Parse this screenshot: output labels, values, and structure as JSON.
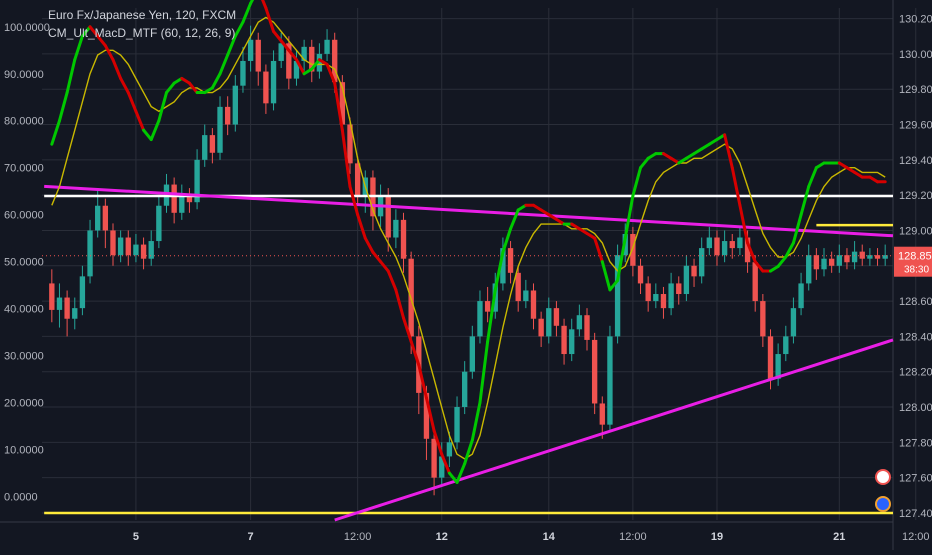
{
  "header": {
    "symbol_line": "Euro Fx/Japanese Yen, 120, FXCM",
    "indicator_line": "CM_Ult_MacD_MTF (60, 12, 26, 9)"
  },
  "colors": {
    "background": "#131722",
    "grid": "#2a2e39",
    "up_candle": "#26a69a",
    "down_candle": "#ef5350",
    "macd_up": "#00c800",
    "macd_down": "#d50000",
    "signal": "#c9b800",
    "trendline": "#e91ee6",
    "white_level": "#ffffff",
    "yellow_level": "#ffeb3b",
    "price_badge": "#ef5350"
  },
  "chart_data": {
    "type": "line",
    "left_axis": {
      "ticks": [
        "100.0000",
        "90.0000",
        "80.0000",
        "70.0000",
        "60.0000",
        "50.0000",
        "40.0000",
        "30.0000",
        "20.0000",
        "10.0000",
        "0.0000"
      ],
      "range": [
        -5,
        104
      ]
    },
    "right_axis": {
      "ticks": [
        "130.200",
        "130.000",
        "129.800",
        "129.600",
        "129.400",
        "129.200",
        "129.000",
        "128.800",
        "128.600",
        "128.400",
        "128.200",
        "128.000",
        "127.800",
        "127.600",
        "127.400"
      ],
      "range": [
        127.36,
        130.26
      ]
    },
    "x_axis": {
      "ticks": [
        {
          "label": "5",
          "bold": true,
          "i": 11
        },
        {
          "label": "7",
          "bold": true,
          "i": 26
        },
        {
          "label": "12:00",
          "bold": false,
          "i": 40
        },
        {
          "label": "12",
          "bold": true,
          "i": 51
        },
        {
          "label": "14",
          "bold": true,
          "i": 65
        },
        {
          "label": "12:00",
          "bold": false,
          "i": 76
        },
        {
          "label": "19",
          "bold": true,
          "i": 87
        },
        {
          "label": "21",
          "bold": true,
          "i": 103
        },
        {
          "label": "12:00",
          "bold": false,
          "i": 113
        }
      ]
    },
    "current_price": "128.857",
    "countdown": "38:30",
    "price_candles": [
      [
        128.7,
        128.55,
        128.78,
        128.48
      ],
      [
        128.55,
        128.62,
        128.7,
        128.45
      ],
      [
        128.62,
        128.5,
        128.66,
        128.4
      ],
      [
        128.5,
        128.56,
        128.62,
        128.44
      ],
      [
        128.56,
        128.74,
        128.8,
        128.52
      ],
      [
        128.74,
        129.0,
        129.06,
        128.7
      ],
      [
        129.0,
        129.14,
        129.24,
        128.96
      ],
      [
        129.14,
        129.0,
        129.18,
        128.9
      ],
      [
        129.0,
        128.86,
        129.04,
        128.8
      ],
      [
        128.86,
        128.96,
        129.0,
        128.82
      ],
      [
        128.96,
        128.86,
        129.0,
        128.8
      ],
      [
        128.86,
        128.92,
        128.98,
        128.82
      ],
      [
        128.92,
        128.84,
        128.96,
        128.78
      ],
      [
        128.84,
        128.94,
        129.0,
        128.8
      ],
      [
        128.94,
        129.14,
        129.2,
        128.9
      ],
      [
        129.14,
        129.26,
        129.32,
        129.1
      ],
      [
        129.26,
        129.1,
        129.3,
        129.04
      ],
      [
        129.1,
        129.2,
        129.26,
        129.06
      ],
      [
        129.2,
        129.16,
        129.24,
        129.1
      ],
      [
        129.16,
        129.4,
        129.46,
        129.12
      ],
      [
        129.4,
        129.54,
        129.6,
        129.36
      ],
      [
        129.54,
        129.44,
        129.58,
        129.38
      ],
      [
        129.44,
        129.7,
        129.76,
        129.4
      ],
      [
        129.7,
        129.6,
        129.76,
        129.54
      ],
      [
        129.6,
        129.82,
        129.88,
        129.56
      ],
      [
        129.82,
        129.96,
        130.04,
        129.78
      ],
      [
        129.96,
        130.08,
        130.16,
        129.9
      ],
      [
        130.08,
        129.9,
        130.12,
        129.82
      ],
      [
        129.9,
        129.72,
        129.94,
        129.66
      ],
      [
        129.72,
        129.96,
        130.02,
        129.68
      ],
      [
        129.96,
        130.06,
        130.12,
        129.92
      ],
      [
        130.06,
        129.86,
        130.1,
        129.8
      ],
      [
        129.86,
        129.96,
        130.02,
        129.82
      ],
      [
        129.96,
        130.04,
        130.08,
        129.9
      ],
      [
        130.04,
        129.9,
        130.08,
        129.84
      ],
      [
        129.9,
        130.0,
        130.06,
        129.86
      ],
      [
        130.0,
        130.08,
        130.14,
        129.96
      ],
      [
        130.08,
        129.84,
        130.12,
        129.78
      ],
      [
        129.84,
        129.6,
        129.88,
        129.54
      ],
      [
        129.6,
        129.38,
        129.64,
        129.32
      ],
      [
        129.38,
        129.2,
        129.42,
        129.14
      ],
      [
        129.2,
        129.3,
        129.34,
        129.1
      ],
      [
        129.3,
        129.08,
        129.34,
        129.0
      ],
      [
        129.08,
        129.2,
        129.26,
        129.02
      ],
      [
        129.2,
        128.96,
        129.24,
        128.88
      ],
      [
        128.96,
        129.06,
        129.12,
        128.9
      ],
      [
        129.06,
        128.84,
        129.1,
        128.76
      ],
      [
        128.84,
        128.4,
        128.88,
        128.3
      ],
      [
        128.4,
        128.08,
        128.46,
        127.96
      ],
      [
        128.08,
        127.82,
        128.12,
        127.7
      ],
      [
        127.82,
        127.6,
        127.86,
        127.5
      ],
      [
        127.6,
        127.72,
        127.8,
        127.56
      ],
      [
        127.72,
        127.8,
        127.86,
        127.66
      ],
      [
        127.8,
        128.0,
        128.06,
        127.76
      ],
      [
        128.0,
        128.2,
        128.26,
        127.96
      ],
      [
        128.2,
        128.4,
        128.46,
        128.16
      ],
      [
        128.4,
        128.6,
        128.66,
        128.36
      ],
      [
        128.6,
        128.54,
        128.68,
        128.48
      ],
      [
        128.54,
        128.7,
        128.76,
        128.5
      ],
      [
        128.7,
        128.9,
        128.96,
        128.66
      ],
      [
        128.9,
        128.76,
        128.94,
        128.7
      ],
      [
        128.76,
        128.6,
        128.8,
        128.54
      ],
      [
        128.6,
        128.66,
        128.72,
        128.56
      ],
      [
        128.66,
        128.5,
        128.7,
        128.44
      ],
      [
        128.5,
        128.4,
        128.54,
        128.34
      ],
      [
        128.4,
        128.56,
        128.62,
        128.36
      ],
      [
        128.56,
        128.46,
        128.6,
        128.4
      ],
      [
        128.46,
        128.3,
        128.5,
        128.24
      ],
      [
        128.3,
        128.44,
        128.5,
        128.26
      ],
      [
        128.44,
        128.52,
        128.58,
        128.4
      ],
      [
        128.52,
        128.38,
        128.56,
        128.32
      ],
      [
        128.38,
        128.02,
        128.42,
        127.96
      ],
      [
        128.02,
        127.9,
        128.06,
        127.82
      ],
      [
        127.9,
        128.4,
        128.46,
        127.86
      ],
      [
        128.4,
        128.86,
        128.92,
        128.36
      ],
      [
        128.86,
        128.98,
        129.04,
        128.82
      ],
      [
        128.98,
        128.8,
        129.02,
        128.74
      ],
      [
        128.8,
        128.7,
        128.84,
        128.64
      ],
      [
        128.7,
        128.6,
        128.74,
        128.54
      ],
      [
        128.6,
        128.64,
        128.7,
        128.56
      ],
      [
        128.64,
        128.56,
        128.68,
        128.5
      ],
      [
        128.56,
        128.7,
        128.76,
        128.52
      ],
      [
        128.7,
        128.64,
        128.74,
        128.58
      ],
      [
        128.64,
        128.8,
        128.86,
        128.6
      ],
      [
        128.8,
        128.74,
        128.84,
        128.68
      ],
      [
        128.74,
        128.9,
        128.96,
        128.7
      ],
      [
        128.9,
        128.96,
        129.02,
        128.86
      ],
      [
        128.96,
        128.86,
        129.0,
        128.8
      ],
      [
        128.86,
        128.94,
        129.0,
        128.82
      ],
      [
        128.94,
        128.9,
        128.98,
        128.84
      ],
      [
        128.9,
        128.96,
        129.02,
        128.86
      ],
      [
        128.96,
        128.82,
        129.0,
        128.76
      ],
      [
        128.82,
        128.6,
        128.86,
        128.54
      ],
      [
        128.6,
        128.4,
        128.64,
        128.34
      ],
      [
        128.4,
        128.16,
        128.44,
        128.1
      ],
      [
        128.16,
        128.3,
        128.36,
        128.12
      ],
      [
        128.3,
        128.4,
        128.46,
        128.26
      ],
      [
        128.4,
        128.56,
        128.62,
        128.36
      ],
      [
        128.56,
        128.7,
        128.76,
        128.52
      ],
      [
        128.7,
        128.86,
        128.92,
        128.66
      ],
      [
        128.86,
        128.78,
        128.9,
        128.72
      ],
      [
        128.78,
        128.84,
        128.9,
        128.74
      ],
      [
        128.84,
        128.8,
        128.88,
        128.76
      ],
      [
        128.8,
        128.86,
        128.92,
        128.76
      ],
      [
        128.86,
        128.82,
        128.9,
        128.78
      ],
      [
        128.82,
        128.88,
        128.94,
        128.78
      ],
      [
        128.88,
        128.84,
        128.92,
        128.8
      ],
      [
        128.84,
        128.86,
        128.9,
        128.8
      ],
      [
        128.86,
        128.84,
        128.9,
        128.8
      ],
      [
        128.84,
        128.86,
        128.92,
        128.8
      ]
    ],
    "macd_series": [
      75,
      80,
      86,
      93,
      98,
      100,
      98,
      96,
      93,
      89,
      86,
      82,
      78,
      76,
      80,
      86,
      88,
      89,
      88,
      86,
      86,
      87,
      90,
      94,
      98,
      101,
      105,
      108,
      104,
      99,
      97,
      95,
      93,
      90,
      91,
      93,
      92,
      88,
      78,
      66,
      60,
      55,
      52,
      50,
      48,
      44,
      38,
      33,
      28,
      21,
      14,
      9,
      5,
      3,
      7,
      12,
      20,
      33,
      44,
      52,
      57,
      61,
      62,
      62,
      61,
      60,
      59,
      58,
      58,
      57,
      56,
      55,
      50,
      44,
      46,
      55,
      64,
      70,
      72,
      73,
      73,
      72,
      71,
      72,
      73,
      74,
      75,
      76,
      77,
      70,
      62,
      54,
      50,
      48,
      48,
      49,
      51,
      54,
      60,
      66,
      70,
      71,
      71,
      71,
      70,
      69,
      68,
      68,
      67,
      67
    ],
    "macd_direction": [
      1,
      1,
      1,
      1,
      1,
      1,
      -1,
      -1,
      -1,
      -1,
      -1,
      -1,
      -1,
      1,
      1,
      1,
      1,
      1,
      -1,
      -1,
      1,
      1,
      1,
      1,
      1,
      1,
      1,
      1,
      -1,
      -1,
      -1,
      -1,
      -1,
      -1,
      1,
      1,
      -1,
      -1,
      -1,
      -1,
      -1,
      -1,
      -1,
      -1,
      -1,
      -1,
      -1,
      -1,
      -1,
      -1,
      -1,
      -1,
      -1,
      1,
      1,
      1,
      1,
      1,
      1,
      1,
      1,
      1,
      1,
      -1,
      -1,
      -1,
      -1,
      -1,
      1,
      -1,
      -1,
      -1,
      -1,
      1,
      1,
      1,
      1,
      1,
      1,
      1,
      1,
      -1,
      -1,
      1,
      1,
      1,
      1,
      1,
      1,
      -1,
      -1,
      -1,
      -1,
      -1,
      -1,
      1,
      1,
      1,
      1,
      1,
      1,
      1,
      1,
      1,
      -1,
      -1,
      -1,
      -1,
      -1,
      -1
    ],
    "signal_series": [
      62,
      66,
      72,
      78,
      84,
      90,
      94,
      95,
      95,
      94,
      92,
      89,
      86,
      83,
      82,
      83,
      84,
      86,
      87,
      87,
      86,
      86,
      87,
      89,
      92,
      95,
      98,
      101,
      102,
      101,
      99,
      97,
      95,
      93,
      92,
      92,
      92,
      91,
      87,
      80,
      72,
      66,
      61,
      57,
      54,
      51,
      47,
      42,
      37,
      31,
      25,
      19,
      13,
      9,
      8,
      9,
      13,
      20,
      28,
      36,
      43,
      49,
      53,
      56,
      58,
      58,
      58,
      58,
      57,
      57,
      57,
      56,
      54,
      50,
      48,
      49,
      53,
      58,
      63,
      67,
      69,
      70,
      71,
      71,
      72,
      72,
      73,
      74,
      75,
      74,
      71,
      66,
      61,
      56,
      53,
      51,
      51,
      52,
      55,
      59,
      63,
      66,
      68,
      69,
      70,
      70,
      69,
      69,
      69,
      68
    ],
    "trendlines": [
      {
        "from": [
          0,
          129.25
        ],
        "to": [
          118,
          128.97
        ]
      },
      {
        "from": [
          38,
          127.36
        ],
        "to": [
          118,
          128.38
        ]
      }
    ],
    "levels": [
      {
        "price": 129.195,
        "color": "white",
        "from": 0,
        "to": 118
      },
      {
        "price": 129.03,
        "color": "yellow",
        "from": 101,
        "to": 118
      },
      {
        "price": 127.4,
        "color": "yellow",
        "from": 0,
        "to": 118
      }
    ],
    "grid": true
  }
}
